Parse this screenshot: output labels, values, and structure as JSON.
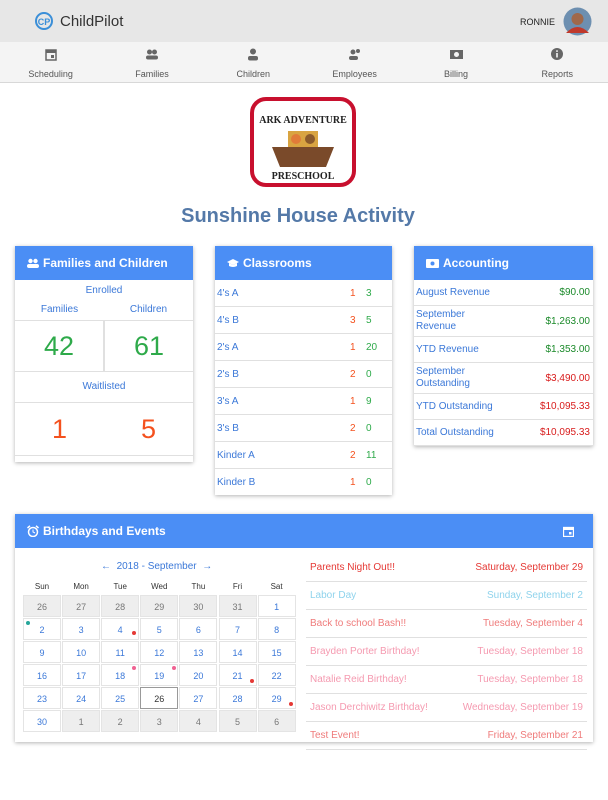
{
  "header": {
    "brand": "ChildPilot",
    "user": "RONNIE"
  },
  "nav": [
    "Scheduling",
    "Families",
    "Children",
    "Employees",
    "Billing",
    "Reports"
  ],
  "logo": {
    "top": "ARK ADVENTURE",
    "bottom": "PRESCHOOL"
  },
  "title": "Sunshine House Activity",
  "families": {
    "title": "Families and Children",
    "enrolled": "Enrolled",
    "families_label": "Families",
    "children_label": "Children",
    "families": 42,
    "children": 61,
    "waitlisted": "Waitlisted",
    "waitlisted_families": 1,
    "waitlisted_children": 5
  },
  "classrooms": {
    "title": "Classrooms",
    "rows": [
      {
        "name": "4's A",
        "a": 1,
        "b": 3
      },
      {
        "name": "4's B",
        "a": 3,
        "b": 5
      },
      {
        "name": "2's A",
        "a": 1,
        "b": 20
      },
      {
        "name": "2's B",
        "a": 2,
        "b": 0
      },
      {
        "name": "3's A",
        "a": 1,
        "b": 9
      },
      {
        "name": "3's B",
        "a": 2,
        "b": 0
      },
      {
        "name": "Kinder A",
        "a": 2,
        "b": 11
      },
      {
        "name": "Kinder B",
        "a": 1,
        "b": 0
      }
    ]
  },
  "accounting": {
    "title": "Accounting",
    "rows": [
      {
        "label": "August Revenue",
        "amount": "$90.00",
        "color": "#1b8a2a"
      },
      {
        "label": "September Revenue",
        "amount": "$1,263.00",
        "color": "#1b8a2a"
      },
      {
        "label": "YTD Revenue",
        "amount": "$1,353.00",
        "color": "#1b8a2a"
      },
      {
        "label": "September Outstanding",
        "amount": "$3,490.00",
        "color": "#d81b1b"
      },
      {
        "label": "YTD Outstanding",
        "amount": "$10,095.33",
        "color": "#d81b1b"
      },
      {
        "label": "Total Outstanding",
        "amount": "$10,095.33",
        "color": "#d81b1b"
      }
    ]
  },
  "events": {
    "title": "Birthdays and Events",
    "calendar": {
      "month": "2018 - September",
      "weekdays": [
        "Sun",
        "Mon",
        "Tue",
        "Wed",
        "Thu",
        "Fri",
        "Sat"
      ],
      "weeks": [
        [
          26,
          27,
          28,
          29,
          30,
          31,
          1
        ],
        [
          2,
          3,
          4,
          5,
          6,
          7,
          8
        ],
        [
          9,
          10,
          11,
          12,
          13,
          14,
          15
        ],
        [
          16,
          17,
          18,
          19,
          20,
          21,
          22
        ],
        [
          23,
          24,
          25,
          26,
          27,
          28,
          29
        ],
        [
          30,
          1,
          2,
          3,
          4,
          5,
          6
        ]
      ],
      "today": 26
    },
    "items": [
      {
        "name": "Parents Night Out!!",
        "date": "Saturday, September 29",
        "color": "#e53935"
      },
      {
        "name": "Labor Day",
        "date": "Sunday, September 2",
        "color": "#8fd3ec"
      },
      {
        "name": "Back to school Bash!!",
        "date": "Tuesday, September 4",
        "color": "#ef7b7b"
      },
      {
        "name": "Brayden Porter Birthday!",
        "date": "Tuesday, September 18",
        "color": "#f59ab0"
      },
      {
        "name": "Natalie Reid Birthday!",
        "date": "Tuesday, September 18",
        "color": "#f59ab0"
      },
      {
        "name": "Jason Derchiwitz Birthday!",
        "date": "Wednesday, September 19",
        "color": "#f59ab0"
      },
      {
        "name": "Test Event!",
        "date": "Friday, September 21",
        "color": "#ef7b7b"
      }
    ]
  }
}
